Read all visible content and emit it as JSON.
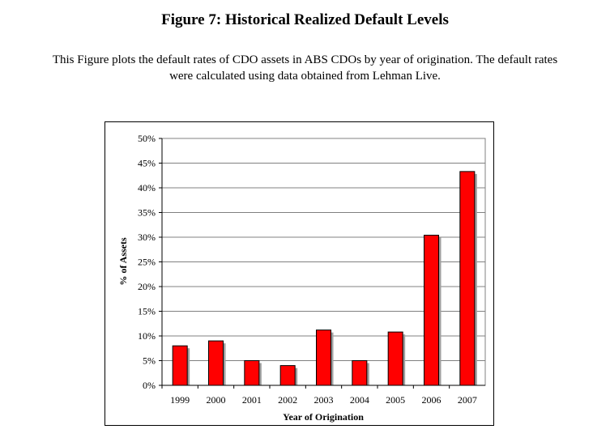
{
  "figure": {
    "title": "Figure 7: Historical Realized Default Levels",
    "caption_line1": "This Figure plots the default rates of CDO assets in ABS CDOs by year of origination. The default rates",
    "caption_line2": "were calculated using data obtained from Lehman Live."
  },
  "chart_data": {
    "type": "bar",
    "categories": [
      "1999",
      "2000",
      "2001",
      "2002",
      "2003",
      "2004",
      "2005",
      "2006",
      "2007"
    ],
    "values": [
      8,
      9,
      5,
      4,
      11.2,
      5,
      10.8,
      30.4,
      43.3
    ],
    "title": "",
    "xlabel": "Year of Origination",
    "ylabel": "% of Assets",
    "ylim": [
      0,
      50
    ],
    "yticks": [
      "0%",
      "5%",
      "10%",
      "15%",
      "20%",
      "25%",
      "30%",
      "35%",
      "40%",
      "45%",
      "50%"
    ],
    "grid": true,
    "bar_color": "#ff0000",
    "shadow_color": "#9e9e9e"
  }
}
